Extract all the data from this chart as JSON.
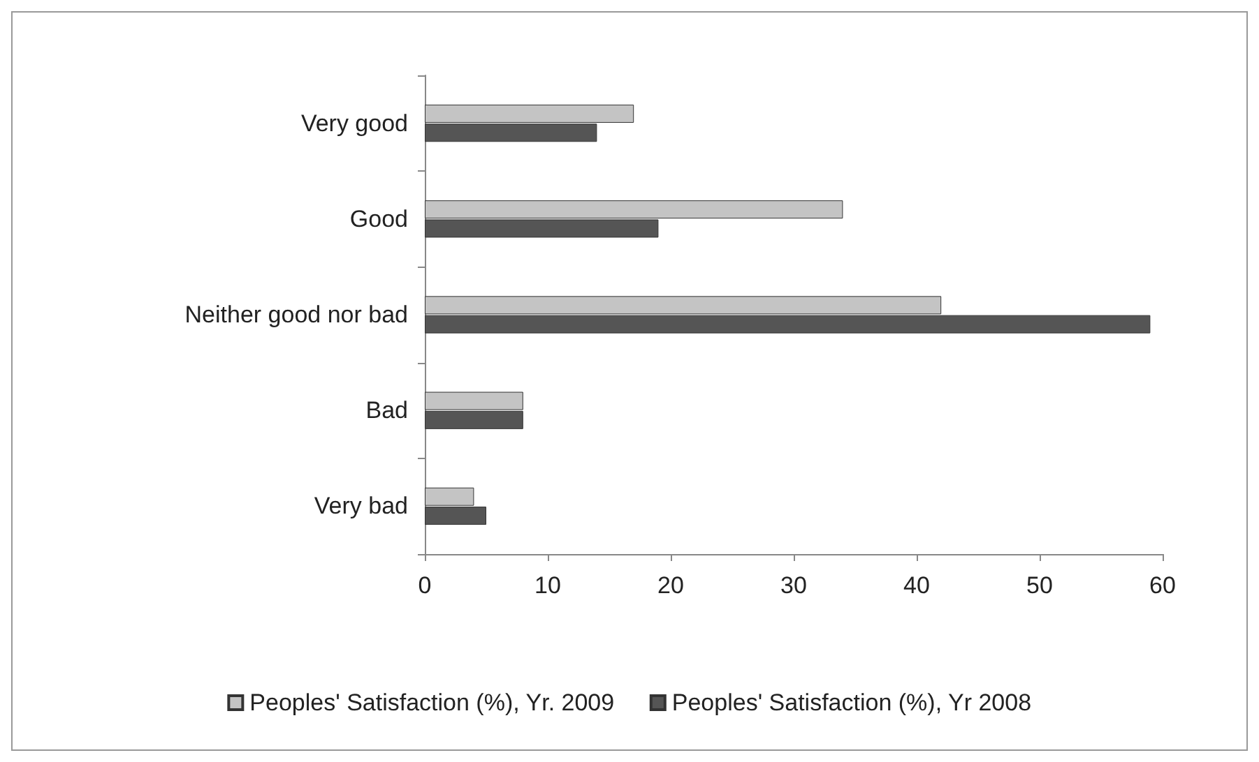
{
  "chart_data": {
    "type": "bar",
    "orientation": "horizontal",
    "categories": [
      "Very good",
      "Good",
      "Neither good nor bad",
      "Bad",
      "Very bad"
    ],
    "series": [
      {
        "name": "Peoples' Satisfaction (%), Yr. 2009",
        "color": "#c4c4c4",
        "values": [
          17,
          34,
          42,
          8,
          4
        ]
      },
      {
        "name": "Peoples' Satisfaction (%), Yr 2008",
        "color": "#555555",
        "values": [
          14,
          19,
          59,
          8,
          5
        ]
      }
    ],
    "xlim": [
      0,
      60
    ],
    "xticks": [
      0,
      10,
      20,
      30,
      40,
      50,
      60
    ],
    "grid": false,
    "legend": "bottom"
  }
}
